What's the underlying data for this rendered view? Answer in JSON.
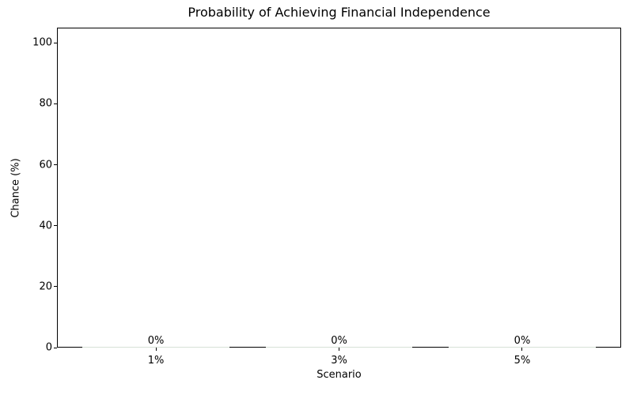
{
  "chart_data": {
    "type": "bar",
    "title": "Probability of Achieving Financial Independence",
    "xlabel": "Scenario",
    "ylabel": "Chance (%)",
    "categories": [
      "1%",
      "3%",
      "5%"
    ],
    "values": [
      0,
      0,
      0
    ],
    "bar_labels": [
      "0%",
      "0%",
      "0%"
    ],
    "yticks": [
      0,
      20,
      40,
      60,
      80,
      100
    ],
    "ylim": [
      0,
      105
    ],
    "grid": false,
    "legend": null,
    "bar_color": "#d6e1d6",
    "axis_color": "#000000",
    "text_color": "#000000",
    "background_color": "#ffffff"
  }
}
